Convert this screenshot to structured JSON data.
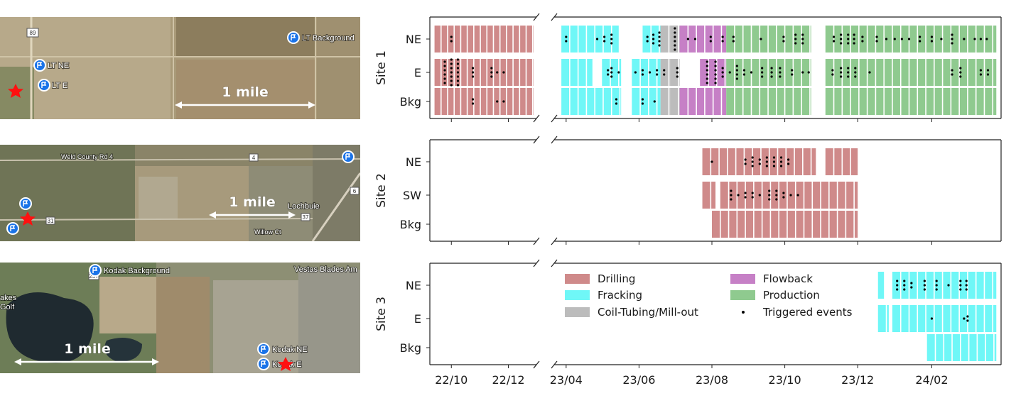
{
  "maps": [
    {
      "scale_label": "1 mile",
      "road_labels": [
        "89"
      ],
      "markers": [
        {
          "label": "LT Background",
          "icon": "location-pin-icon"
        },
        {
          "label": "LT NE",
          "icon": "location-pin-icon"
        },
        {
          "label": "LT E",
          "icon": "location-pin-icon"
        }
      ],
      "site_icon": "red-star-icon"
    },
    {
      "scale_label": "1 mile",
      "road_labels": [
        "Weld County Rd 4",
        "4",
        "Lochbuie",
        "31",
        "37",
        "Willow Ct",
        "6"
      ],
      "markers": [
        {
          "label": "",
          "icon": "location-pin-icon"
        },
        {
          "label": "",
          "icon": "location-pin-icon"
        },
        {
          "label": "",
          "icon": "location-pin-icon"
        }
      ],
      "site_icon": "red-star-icon"
    },
    {
      "scale_label": "1 mile",
      "road_labels": [
        "Vestas Blades Am",
        "257",
        "akes",
        "Golf"
      ],
      "markers": [
        {
          "label": "Kodak Background",
          "icon": "location-pin-icon"
        },
        {
          "label": "Kodak NE",
          "icon": "location-pin-icon"
        },
        {
          "label": "Kodak E",
          "icon": "location-pin-icon"
        }
      ],
      "site_icon": "red-star-icon"
    }
  ],
  "chart_data": {
    "type": "timeline",
    "x_units": "year/month (YY/MM)",
    "x_ticks": [
      "22/10",
      "22/12",
      "23/04",
      "23/06",
      "23/08",
      "23/10",
      "23/12",
      "24/02"
    ],
    "x_tick_values": [
      "2022-10",
      "2022-12",
      "2023-04",
      "2023-06",
      "2023-08",
      "2023-10",
      "2023-12",
      "2024-02"
    ],
    "axis_break": [
      "2023-01",
      "2023-03"
    ],
    "legend": [
      {
        "key": "drilling",
        "label": "Drilling",
        "color": "#cf8a8a"
      },
      {
        "key": "fracking",
        "label": "Fracking",
        "color": "#6ff7f7"
      },
      {
        "key": "coil",
        "label": "Coil-Tubing/Mill-out",
        "color": "#bcbcbc"
      },
      {
        "key": "flowback",
        "label": "Flowback",
        "color": "#c680c6"
      },
      {
        "key": "production",
        "label": "Production",
        "color": "#8fca8f"
      },
      {
        "key": "event",
        "label": "Triggered events",
        "color": "#000000"
      }
    ],
    "legend_position": "inside site 3 panel, upper left",
    "sites": [
      {
        "label": "Site 1",
        "rows": [
          {
            "label": "NE",
            "segments": [
              {
                "phase": "drilling",
                "start": "2022-09-13",
                "end": "2022-12-28"
              },
              {
                "phase": "fracking",
                "start": "2023-03-28",
                "end": "2023-05-15"
              },
              {
                "phase": "fracking",
                "start": "2023-06-04",
                "end": "2023-06-19"
              },
              {
                "phase": "coil",
                "start": "2023-06-19",
                "end": "2023-06-27"
              },
              {
                "phase": "coil",
                "start": "2023-06-27",
                "end": "2023-07-05"
              },
              {
                "phase": "flowback",
                "start": "2023-07-05",
                "end": "2023-08-13"
              },
              {
                "phase": "production",
                "start": "2023-08-13",
                "end": "2023-10-23"
              },
              {
                "phase": "production",
                "start": "2023-11-04",
                "end": "2024-03-26"
              }
            ],
            "events": [
              {
                "date": "2022-10-01",
                "count": 2
              },
              {
                "date": "2023-04-01",
                "count": 2
              },
              {
                "date": "2023-04-27",
                "count": 1
              },
              {
                "date": "2023-05-03",
                "count": 2
              },
              {
                "date": "2023-05-09",
                "count": 3
              },
              {
                "date": "2023-06-08",
                "count": 2
              },
              {
                "date": "2023-06-13",
                "count": 3
              },
              {
                "date": "2023-06-18",
                "count": 4
              },
              {
                "date": "2023-07-01",
                "count": 6
              },
              {
                "date": "2023-07-12",
                "count": 1
              },
              {
                "date": "2023-07-18",
                "count": 1
              },
              {
                "date": "2023-07-31",
                "count": 2
              },
              {
                "date": "2023-08-10",
                "count": 2
              },
              {
                "date": "2023-08-19",
                "count": 2
              },
              {
                "date": "2023-09-11",
                "count": 1
              },
              {
                "date": "2023-09-30",
                "count": 2
              },
              {
                "date": "2023-10-10",
                "count": 3
              },
              {
                "date": "2023-10-16",
                "count": 3
              },
              {
                "date": "2023-11-11",
                "count": 2
              },
              {
                "date": "2023-11-17",
                "count": 3
              },
              {
                "date": "2023-11-23",
                "count": 3
              },
              {
                "date": "2023-11-28",
                "count": 3
              },
              {
                "date": "2023-12-05",
                "count": 2
              },
              {
                "date": "2023-12-17",
                "count": 2
              },
              {
                "date": "2023-12-25",
                "count": 1
              },
              {
                "date": "2024-01-01",
                "count": 1
              },
              {
                "date": "2024-01-07",
                "count": 1
              },
              {
                "date": "2024-01-13",
                "count": 1
              },
              {
                "date": "2024-01-22",
                "count": 2
              },
              {
                "date": "2024-02-01",
                "count": 2
              },
              {
                "date": "2024-02-09",
                "count": 1
              },
              {
                "date": "2024-02-18",
                "count": 3
              },
              {
                "date": "2024-02-28",
                "count": 1
              },
              {
                "date": "2024-03-08",
                "count": 1
              },
              {
                "date": "2024-03-13",
                "count": 1
              },
              {
                "date": "2024-03-18",
                "count": 1
              }
            ]
          },
          {
            "label": "E",
            "segments": [
              {
                "phase": "drilling",
                "start": "2022-09-13",
                "end": "2022-12-28"
              },
              {
                "phase": "fracking",
                "start": "2023-03-28",
                "end": "2023-04-23"
              },
              {
                "phase": "fracking",
                "start": "2023-05-01",
                "end": "2023-05-17"
              },
              {
                "phase": "fracking",
                "start": "2023-05-26",
                "end": "2023-06-19"
              },
              {
                "phase": "coil",
                "start": "2023-06-19",
                "end": "2023-06-27"
              },
              {
                "phase": "coil",
                "start": "2023-06-27",
                "end": "2023-07-05"
              },
              {
                "phase": "flowback",
                "start": "2023-07-22",
                "end": "2023-08-13"
              },
              {
                "phase": "production",
                "start": "2023-08-13",
                "end": "2023-10-23"
              },
              {
                "phase": "production",
                "start": "2023-11-04",
                "end": "2024-03-26"
              }
            ],
            "events": [
              {
                "date": "2022-09-24",
                "count": 6
              },
              {
                "date": "2022-10-01",
                "count": 7
              },
              {
                "date": "2022-10-08",
                "count": 7
              },
              {
                "date": "2022-10-24",
                "count": 3
              },
              {
                "date": "2022-11-13",
                "count": 3
              },
              {
                "date": "2022-11-19",
                "count": 1
              },
              {
                "date": "2022-11-26",
                "count": 1
              },
              {
                "date": "2023-05-06",
                "count": 2
              },
              {
                "date": "2023-05-09",
                "count": 3
              },
              {
                "date": "2023-05-15",
                "count": 1
              },
              {
                "date": "2023-05-29",
                "count": 1
              },
              {
                "date": "2023-06-04",
                "count": 2
              },
              {
                "date": "2023-06-10",
                "count": 1
              },
              {
                "date": "2023-06-16",
                "count": 2
              },
              {
                "date": "2023-06-22",
                "count": 2
              },
              {
                "date": "2023-07-03",
                "count": 3
              },
              {
                "date": "2023-07-28",
                "count": 6
              },
              {
                "date": "2023-08-04",
                "count": 6
              },
              {
                "date": "2023-08-10",
                "count": 3
              },
              {
                "date": "2023-08-16",
                "count": 1
              },
              {
                "date": "2023-08-22",
                "count": 4
              },
              {
                "date": "2023-08-28",
                "count": 2
              },
              {
                "date": "2023-09-03",
                "count": 1
              },
              {
                "date": "2023-09-12",
                "count": 3
              },
              {
                "date": "2023-09-20",
                "count": 3
              },
              {
                "date": "2023-09-27",
                "count": 3
              },
              {
                "date": "2023-10-07",
                "count": 2
              },
              {
                "date": "2023-10-16",
                "count": 1
              },
              {
                "date": "2023-10-21",
                "count": 1
              },
              {
                "date": "2023-11-10",
                "count": 2
              },
              {
                "date": "2023-11-17",
                "count": 3
              },
              {
                "date": "2023-11-23",
                "count": 3
              },
              {
                "date": "2023-11-29",
                "count": 3
              },
              {
                "date": "2023-12-11",
                "count": 1
              },
              {
                "date": "2024-02-18",
                "count": 2
              },
              {
                "date": "2024-02-25",
                "count": 3
              },
              {
                "date": "2024-03-13",
                "count": 2
              },
              {
                "date": "2024-03-19",
                "count": 2
              }
            ]
          },
          {
            "label": "Bkg",
            "segments": [
              {
                "phase": "drilling",
                "start": "2022-09-13",
                "end": "2022-12-28"
              },
              {
                "phase": "fracking",
                "start": "2023-03-28",
                "end": "2023-05-17"
              },
              {
                "phase": "fracking",
                "start": "2023-05-26",
                "end": "2023-06-19"
              },
              {
                "phase": "coil",
                "start": "2023-06-19",
                "end": "2023-06-27"
              },
              {
                "phase": "coil",
                "start": "2023-06-27",
                "end": "2023-07-05"
              },
              {
                "phase": "flowback",
                "start": "2023-07-05",
                "end": "2023-08-13"
              },
              {
                "phase": "production",
                "start": "2023-08-13",
                "end": "2023-10-23"
              },
              {
                "phase": "production",
                "start": "2023-11-04",
                "end": "2024-03-26"
              }
            ],
            "events": [
              {
                "date": "2022-10-24",
                "count": 2
              },
              {
                "date": "2022-11-19",
                "count": 1
              },
              {
                "date": "2022-11-26",
                "count": 1
              },
              {
                "date": "2023-05-13",
                "count": 2
              },
              {
                "date": "2023-06-04",
                "count": 2
              },
              {
                "date": "2023-06-14",
                "count": 1
              }
            ]
          }
        ]
      },
      {
        "label": "Site 2",
        "rows": [
          {
            "label": "NE",
            "segments": [
              {
                "phase": "drilling",
                "start": "2023-07-24",
                "end": "2023-10-27"
              },
              {
                "phase": "drilling",
                "start": "2023-11-04",
                "end": "2023-12-01"
              }
            ],
            "events": [
              {
                "date": "2023-08-01",
                "count": 1
              },
              {
                "date": "2023-08-29",
                "count": 2
              },
              {
                "date": "2023-09-04",
                "count": 3
              },
              {
                "date": "2023-09-10",
                "count": 2
              },
              {
                "date": "2023-09-16",
                "count": 3
              },
              {
                "date": "2023-09-22",
                "count": 3
              },
              {
                "date": "2023-09-28",
                "count": 3
              },
              {
                "date": "2023-10-04",
                "count": 2
              }
            ]
          },
          {
            "label": "SW",
            "segments": [
              {
                "phase": "drilling",
                "start": "2023-07-24",
                "end": "2023-08-04"
              },
              {
                "phase": "drilling",
                "start": "2023-08-08",
                "end": "2023-12-01"
              }
            ],
            "events": [
              {
                "date": "2023-08-17",
                "count": 3
              },
              {
                "date": "2023-08-23",
                "count": 1
              },
              {
                "date": "2023-08-29",
                "count": 2
              },
              {
                "date": "2023-09-04",
                "count": 2
              },
              {
                "date": "2023-09-10",
                "count": 1
              },
              {
                "date": "2023-09-18",
                "count": 3
              },
              {
                "date": "2023-09-24",
                "count": 3
              },
              {
                "date": "2023-09-30",
                "count": 2
              },
              {
                "date": "2023-10-06",
                "count": 1
              },
              {
                "date": "2023-10-12",
                "count": 1
              }
            ]
          },
          {
            "label": "Bkg",
            "segments": [
              {
                "phase": "drilling",
                "start": "2023-08-01",
                "end": "2023-12-01"
              }
            ],
            "events": []
          }
        ]
      },
      {
        "label": "Site 3",
        "rows": [
          {
            "label": "NE",
            "segments": [
              {
                "phase": "fracking",
                "start": "2023-12-18",
                "end": "2023-12-23"
              },
              {
                "phase": "fracking",
                "start": "2023-12-30",
                "end": "2024-03-26"
              }
            ],
            "events": [
              {
                "date": "2024-01-03",
                "count": 3
              },
              {
                "date": "2024-01-09",
                "count": 3
              },
              {
                "date": "2024-01-15",
                "count": 2
              },
              {
                "date": "2024-01-26",
                "count": 3
              },
              {
                "date": "2024-02-05",
                "count": 3
              },
              {
                "date": "2024-02-15",
                "count": 1
              },
              {
                "date": "2024-02-25",
                "count": 3
              },
              {
                "date": "2024-03-01",
                "count": 3
              }
            ]
          },
          {
            "label": "E",
            "segments": [
              {
                "phase": "fracking",
                "start": "2023-12-18",
                "end": "2023-12-27"
              },
              {
                "phase": "fracking",
                "start": "2023-12-30",
                "end": "2024-03-26"
              }
            ],
            "events": [
              {
                "date": "2024-02-01",
                "count": 1
              },
              {
                "date": "2024-02-28",
                "count": 1
              },
              {
                "date": "2024-03-02",
                "count": 2
              }
            ]
          },
          {
            "label": "Bkg",
            "segments": [
              {
                "phase": "fracking",
                "start": "2024-01-28",
                "end": "2024-03-26"
              }
            ],
            "events": []
          }
        ]
      }
    ]
  }
}
